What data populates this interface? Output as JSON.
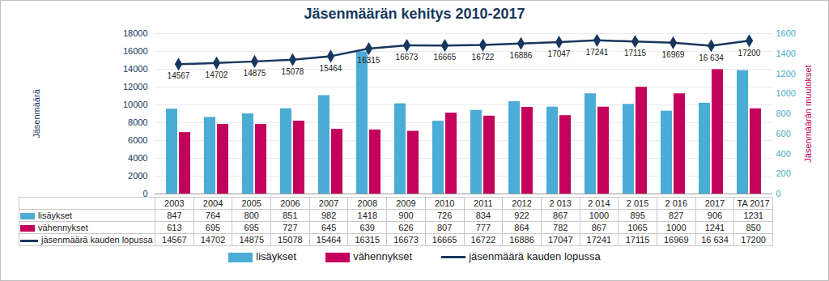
{
  "chart_data": {
    "type": "bar",
    "title": "Jäsenmäärän kehitys 2010-2017",
    "y_label": "Jäsenmäärä",
    "y2_label": "Jäsenmäärän muutokset",
    "categories": [
      "2003",
      "2004",
      "2005",
      "2006",
      "2007",
      "2008",
      "2009",
      "2010",
      "2011",
      "2012",
      "2 013",
      "2 014",
      "2 015",
      "2 016",
      "2017",
      "TA 2017"
    ],
    "series": [
      {
        "name": "lisäykset",
        "type": "bar",
        "axis": "y2",
        "color": "#4bacd6",
        "values": [
          847,
          764,
          800,
          851,
          982,
          1418,
          900,
          726,
          834,
          922,
          867,
          1000,
          895,
          827,
          906,
          1231
        ]
      },
      {
        "name": "vähennykset",
        "type": "bar",
        "axis": "y2",
        "color": "#c3005b",
        "values": [
          613,
          695,
          695,
          727,
          645,
          639,
          626,
          807,
          777,
          864,
          782,
          867,
          1065,
          1000,
          1241,
          850
        ]
      },
      {
        "name": "jäsenmäärä kauden lopussa",
        "type": "line",
        "color": "#17375e",
        "marker": "diamond",
        "data_labels": true,
        "values": [
          14567,
          14702,
          14875,
          15078,
          15464,
          16315,
          16673,
          16665,
          16722,
          16886,
          17047,
          17241,
          17115,
          16969,
          16634,
          17200
        ],
        "value_labels": [
          "14567",
          "14702",
          "14875",
          "15078",
          "15464",
          "16315",
          "16673",
          "16665",
          "16722",
          "16886",
          "17047",
          "17241",
          "17115",
          "16969",
          "16 634",
          "17200"
        ]
      }
    ],
    "ylim": [
      0,
      18000
    ],
    "yticks": [
      0,
      2000,
      4000,
      6000,
      8000,
      10000,
      12000,
      14000,
      16000,
      18000
    ],
    "y2lim": [
      0,
      1600
    ],
    "y2ticks": [
      0,
      200,
      400,
      600,
      800,
      1000,
      1200,
      1400,
      1600
    ],
    "grid": true,
    "legend": "bottom"
  }
}
